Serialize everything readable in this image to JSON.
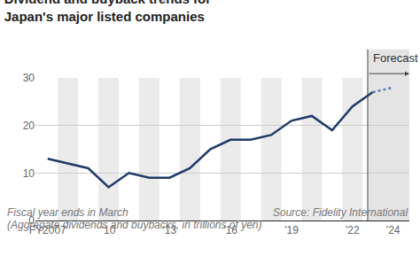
{
  "chart_data": {
    "type": "line",
    "title": "Dividend and buyback trends for Japan's major listed companies",
    "subtitle": "(Aggregate dividends and buybacks, in trillions of yen)",
    "x": [
      2007,
      2008,
      2009,
      2010,
      2011,
      2012,
      2013,
      2014,
      2015,
      2016,
      2017,
      2018,
      2019,
      2020,
      2021,
      2022,
      2023,
      2024
    ],
    "series": [
      {
        "values": [
          13,
          12,
          11,
          7,
          10,
          9,
          9,
          11,
          15,
          17,
          17,
          18,
          21,
          22,
          19,
          24,
          27,
          null
        ],
        "color": "#1f3a68",
        "line_style": "solid"
      },
      {
        "name": "Forecast",
        "values": [
          null,
          null,
          null,
          null,
          null,
          null,
          null,
          null,
          null,
          null,
          null,
          null,
          null,
          null,
          null,
          null,
          27,
          28
        ],
        "color": "#5b7fb5",
        "line_style": "dotted"
      }
    ],
    "xlim": [
      2006.4,
      2024.8
    ],
    "xticks": [
      {
        "value": 2007,
        "label": "FY2007"
      },
      {
        "value": 2010,
        "label": "'10"
      },
      {
        "value": 2013,
        "label": "'13"
      },
      {
        "value": 2016,
        "label": "'16"
      },
      {
        "value": 2019,
        "label": "'19"
      },
      {
        "value": 2022,
        "label": "'22"
      },
      {
        "value": 2024,
        "label": "'24"
      }
    ],
    "ylim": [
      0,
      30
    ],
    "yticks": [
      0,
      10,
      20,
      30
    ],
    "grid": true,
    "footnote": "Fiscal year ends in March",
    "source": "Source: Fidelity International"
  }
}
